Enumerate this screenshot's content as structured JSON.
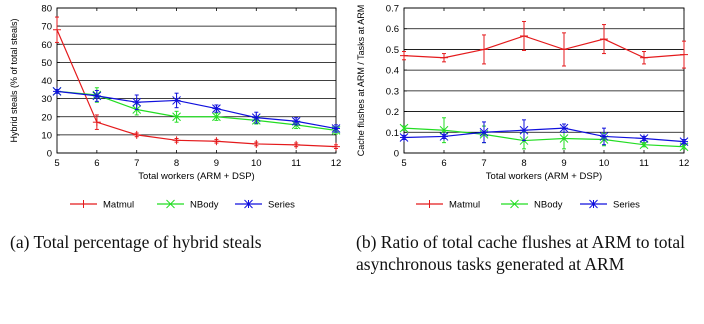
{
  "chart_data": [
    {
      "type": "line",
      "xlabel": "Total workers (ARM + DSP)",
      "ylabel": "Hybrid steals (% of total steals)",
      "xlim": [
        5,
        12
      ],
      "ylim": [
        0,
        80
      ],
      "x": [
        5,
        6,
        7,
        8,
        9,
        10,
        11,
        12
      ],
      "xticks": [
        "5",
        "6",
        "7",
        "8",
        "9",
        "10",
        "11",
        "12"
      ],
      "yticks": [
        "0",
        "10",
        "20",
        "30",
        "40",
        "50",
        "60",
        "70",
        "80"
      ],
      "grid": "horizontal",
      "series": [
        {
          "name": "Matmul",
          "color": "#e41a1c",
          "marker": "plus",
          "values": [
            68,
            17,
            10,
            7,
            6.5,
            5,
            4.5,
            3.5
          ],
          "errors": [
            7,
            4,
            1,
            1,
            1,
            1,
            1,
            1
          ]
        },
        {
          "name": "NBody",
          "color": "#22dd22",
          "marker": "x",
          "values": [
            34,
            32,
            24,
            20,
            20,
            18,
            15.5,
            12.5
          ],
          "errors": [
            1,
            4,
            3,
            3,
            2,
            2,
            2,
            2
          ]
        },
        {
          "name": "Series",
          "color": "#1010dd",
          "marker": "star",
          "values": [
            34,
            31.5,
            28,
            29,
            24.5,
            19.5,
            17.5,
            13.5
          ],
          "errors": [
            1,
            3,
            4,
            4,
            2,
            3,
            2,
            2
          ]
        }
      ]
    },
    {
      "type": "line",
      "xlabel": "Total workers (ARM + DSP)",
      "ylabel": "Cache flushes at ARM / Tasks at ARM",
      "xlim": [
        5,
        12
      ],
      "ylim": [
        0,
        0.7
      ],
      "x": [
        5,
        6,
        7,
        8,
        9,
        10,
        11,
        12
      ],
      "xticks": [
        "5",
        "6",
        "7",
        "8",
        "9",
        "10",
        "11",
        "12"
      ],
      "yticks": [
        "0",
        "0.1",
        "0.2",
        "0.3",
        "0.4",
        "0.5",
        "0.6",
        "0.7"
      ],
      "grid": "horizontal",
      "series": [
        {
          "name": "Matmul",
          "color": "#e41a1c",
          "marker": "plus",
          "values": [
            0.47,
            0.46,
            0.5,
            0.565,
            0.5,
            0.55,
            0.46,
            0.475
          ],
          "errors": [
            0.02,
            0.02,
            0.07,
            0.07,
            0.08,
            0.07,
            0.03,
            0.065
          ]
        },
        {
          "name": "NBody",
          "color": "#22dd22",
          "marker": "x",
          "values": [
            0.12,
            0.11,
            0.09,
            0.06,
            0.07,
            0.065,
            0.04,
            0.03
          ],
          "errors": [
            0.01,
            0.06,
            0.04,
            0.04,
            0.05,
            0.03,
            0.01,
            0.01
          ]
        },
        {
          "name": "Series",
          "color": "#1010dd",
          "marker": "star",
          "values": [
            0.075,
            0.08,
            0.1,
            0.11,
            0.12,
            0.08,
            0.07,
            0.055
          ],
          "errors": [
            0.01,
            0.01,
            0.05,
            0.05,
            0.02,
            0.04,
            0.01,
            0.01
          ]
        }
      ]
    }
  ],
  "captions": {
    "a": "(a) Total percentage of hybrid steals",
    "b": "(b) Ratio of total cache flushes at ARM to total asynchronous tasks generated at ARM"
  }
}
